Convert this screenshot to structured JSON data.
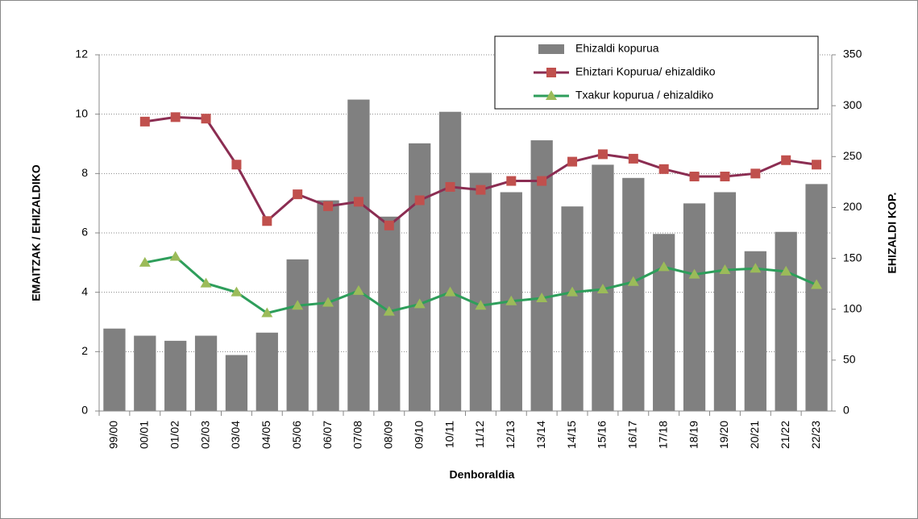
{
  "chart_data": {
    "type": "bar-line",
    "xlabel": "Denboraldia",
    "ylabel": "EMAITZAK / EHIZALDIKO",
    "y2label": "EHIZALDI KOP.",
    "categories": [
      "99/00",
      "00/01",
      "01/02",
      "02/03",
      "03/04",
      "04/05",
      "05/06",
      "06/07",
      "07/08",
      "08/09",
      "09/10",
      "10/11",
      "11/12",
      "12/13",
      "13/14",
      "14/15",
      "15/16",
      "16/17",
      "17/18",
      "18/19",
      "19/20",
      "20/21",
      "21/22",
      "22/23"
    ],
    "series": [
      {
        "name": "Ehizaldi kopurua",
        "type": "bar",
        "axis": "y2",
        "color": "#808080",
        "values": [
          81,
          74,
          69,
          74,
          55,
          77,
          149,
          207,
          306,
          191,
          263,
          294,
          234,
          215,
          266,
          201,
          242,
          229,
          174,
          204,
          215,
          157,
          176,
          223
        ]
      },
      {
        "name": "Ehiztari Kopurua/ ehizaldiko",
        "type": "line",
        "color": "#8b2d52",
        "marker": "square",
        "marker_color": "#c0504d",
        "values": [
          null,
          9.75,
          9.9,
          9.85,
          8.3,
          6.4,
          7.3,
          6.9,
          7.05,
          6.25,
          7.1,
          7.55,
          7.45,
          7.75,
          7.75,
          8.4,
          8.65,
          8.5,
          8.15,
          7.9,
          7.9,
          8.0,
          8.45,
          8.3
        ]
      },
      {
        "name": "Txakur kopurua / ehizaldiko",
        "type": "line",
        "color": "#2e9e5b",
        "marker": "triangle",
        "marker_color": "#9bbb59",
        "values": [
          null,
          5.0,
          5.2,
          4.3,
          4.0,
          3.3,
          3.55,
          3.65,
          4.05,
          3.35,
          3.6,
          4.0,
          3.55,
          3.7,
          3.8,
          4.0,
          4.1,
          4.35,
          4.85,
          4.6,
          4.75,
          4.8,
          4.7,
          4.25
        ]
      }
    ],
    "ylim": [
      0,
      12
    ],
    "yticks": [
      0,
      2,
      4,
      6,
      8,
      10,
      12
    ],
    "y2lim": [
      0,
      350
    ],
    "y2ticks": [
      0,
      50,
      100,
      150,
      200,
      250,
      300,
      350
    ],
    "grid": true,
    "legend": "top-right"
  }
}
